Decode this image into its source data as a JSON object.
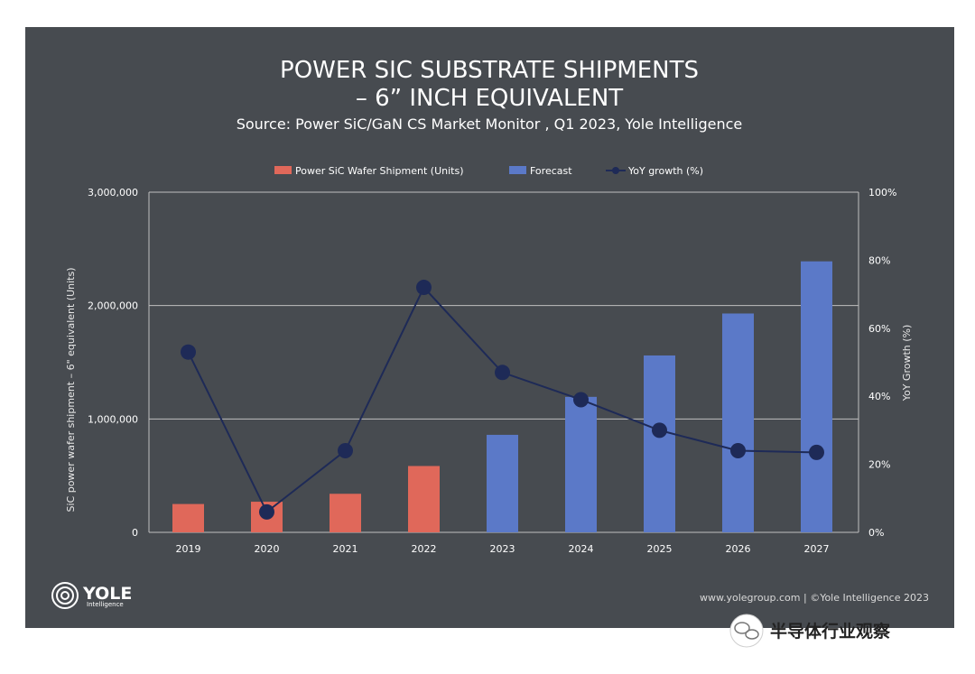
{
  "chart_data": {
    "type": "bar",
    "title_line1": "POWER SIC SUBSTRATE SHIPMENTS",
    "title_line2": "– 6” INCH EQUIVALENT",
    "subtitle": "Source: Power SiC/GaN CS Market Monitor , Q1 2023, Yole Intelligence",
    "xlabel": "",
    "ylabel": "SiC power wafer shipment   – 6\" equivalent (Units)",
    "y2label": "YoY Growth (%)",
    "categories": [
      "2019",
      "2020",
      "2021",
      "2022",
      "2023",
      "2024",
      "2025",
      "2026",
      "2027"
    ],
    "ylim": [
      0,
      3000000
    ],
    "y2lim": [
      0,
      100
    ],
    "yticks": [
      "0",
      "1,000,000",
      "2,000,000",
      "3,000,000"
    ],
    "y2ticks": [
      "0%",
      "20%",
      "40%",
      "60%",
      "80%",
      "100%"
    ],
    "grid": "horizontal",
    "legend_position": "top-center",
    "series": [
      {
        "name": "Power SiC Wafer Shipment (Units)",
        "type": "bar",
        "color": "#e0685a",
        "values": [
          250000,
          270000,
          340000,
          585000,
          null,
          null,
          null,
          null,
          null
        ]
      },
      {
        "name": "Forecast",
        "type": "bar",
        "color": "#5b79c8",
        "values": [
          null,
          null,
          null,
          null,
          860000,
          1195000,
          1560000,
          1930000,
          2390000
        ]
      },
      {
        "name": "YoY growth (%)",
        "type": "line",
        "axis": "right",
        "color": "#1e2a57",
        "values": [
          53,
          6,
          24,
          72,
          47,
          39,
          30,
          24,
          23.5
        ]
      }
    ]
  },
  "footer": {
    "logo_text": "YOLE",
    "logo_sub": "Intelligence",
    "credit": "www.yolegroup.com | ©Yole Intelligence 2023"
  },
  "watermark": {
    "text": "半导体行业观察"
  }
}
